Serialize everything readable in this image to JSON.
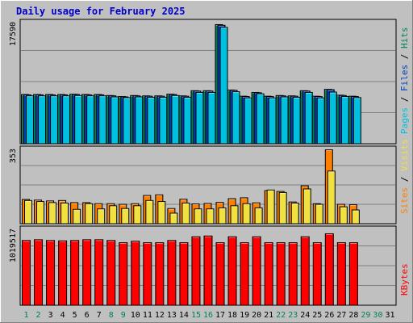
{
  "chart_data": {
    "type": "bar",
    "title": "Daily usage for February 2025",
    "x_labels": [
      "1",
      "2",
      "3",
      "4",
      "5",
      "6",
      "7",
      "8",
      "9",
      "10",
      "11",
      "12",
      "13",
      "14",
      "15",
      "16",
      "17",
      "18",
      "19",
      "20",
      "21",
      "22",
      "23",
      "24",
      "25",
      "26",
      "27",
      "28",
      "29",
      "30",
      "31"
    ],
    "weekend_days": [
      "1",
      "2",
      "8",
      "9",
      "15",
      "16",
      "22",
      "23",
      "29",
      "30"
    ],
    "panels": [
      {
        "id": "hits",
        "max_label": "17590",
        "ymax": 17590,
        "legend": [
          "Pages",
          "Files",
          "Hits"
        ],
        "series": [
          {
            "name": "Hits",
            "color": "#00805c",
            "values": [
              7150,
              7150,
              7150,
              7150,
              7200,
              7150,
              7150,
              7000,
              6850,
              7000,
              6950,
              6950,
              7200,
              6950,
              7700,
              7700,
              17300,
              7800,
              6900,
              7450,
              6900,
              7000,
              6950,
              7700,
              6900,
              7900,
              7050,
              6900,
              0,
              0,
              0
            ]
          },
          {
            "name": "Files",
            "color": "#0040c0",
            "values": [
              7100,
              7100,
              7100,
              7100,
              7150,
              7100,
              7100,
              6950,
              6800,
              6950,
              6900,
              6900,
              7150,
              6900,
              7650,
              7650,
              17200,
              7750,
              6850,
              7400,
              6850,
              6950,
              6900,
              7650,
              6850,
              7850,
              7000,
              6850,
              0,
              0,
              0
            ]
          },
          {
            "name": "Pages",
            "color": "#00c0e0",
            "values": [
              6950,
              6950,
              6950,
              6950,
              7000,
              6950,
              6950,
              6800,
              6700,
              6800,
              6750,
              6750,
              7000,
              6750,
              7450,
              7450,
              16900,
              7550,
              6650,
              7250,
              6650,
              6800,
              6750,
              7450,
              6650,
              7500,
              6850,
              6700,
              0,
              0,
              0
            ]
          }
        ]
      },
      {
        "id": "visits",
        "max_label": "353",
        "ymax": 353,
        "legend": [
          "Sites",
          "Visits"
        ],
        "series": [
          {
            "name": "Visits",
            "color": "#ff8000",
            "values": [
              115,
              112,
              108,
              110,
              100,
              100,
              95,
              95,
              92,
              95,
              134,
              137,
              72,
              116,
              94,
              96,
              101,
              119,
              123,
              99,
              157,
              153,
              103,
              180,
              95,
              351,
              92,
              90,
              0,
              0,
              0
            ]
          },
          {
            "name": "Sites",
            "color": "#f0e040",
            "values": [
              110,
              105,
              100,
              98,
              68,
              95,
              70,
              85,
              72,
              85,
              110,
              105,
              50,
              98,
              70,
              70,
              75,
              85,
              95,
              75,
              160,
              148,
              98,
              165,
              92,
              250,
              80,
              65,
              0,
              0,
              0
            ]
          }
        ]
      },
      {
        "id": "kbytes",
        "max_label": "1019517",
        "ymax": 1019517,
        "legend": [
          "KBytes"
        ],
        "series": [
          {
            "name": "KBytes",
            "color": "#ff0000",
            "values": [
              870000,
              880000,
              870000,
              865000,
              870000,
              880000,
              880000,
              870000,
              840000,
              860000,
              840000,
              840000,
              870000,
              840000,
              920000,
              930000,
              840000,
              920000,
              840000,
              920000,
              840000,
              840000,
              840000,
              920000,
              840000,
              960000,
              840000,
              840000,
              0,
              0,
              0
            ]
          }
        ]
      }
    ]
  }
}
